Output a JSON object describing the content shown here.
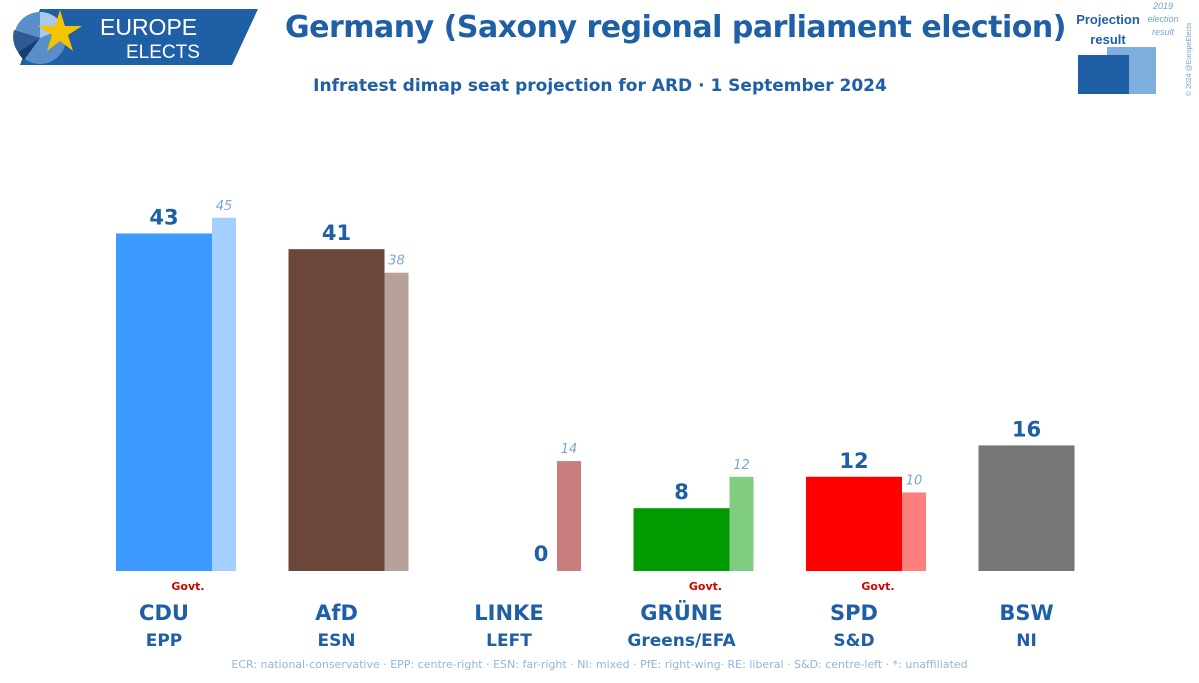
{
  "brand": {
    "line1": "EUROPE",
    "line2": "ELECTS"
  },
  "title": "Germany (Saxony regional parliament election)",
  "subtitle": "Infratest dimap seat projection for ARD · 1 September 2024",
  "legend": {
    "projection_line1": "Projection",
    "projection_line2": "result",
    "previous_line1": "2019",
    "previous_line2": "election",
    "previous_line3": "result",
    "copyright": "© 2024 @EuropeElects"
  },
  "footnote": "ECR: national-conservative · EPP: centre-right · ESN: far-right · NI: mixed · PfE: right-wing· RE: liberal · S&D: centre-left · *: unaffiliated",
  "colors": {
    "brand_blue": "#1f5fa6",
    "govt_red": "#d40000"
  },
  "chart_data": {
    "type": "bar",
    "series": [
      {
        "name": "Projection result",
        "values": [
          43,
          41,
          0,
          8,
          12,
          16
        ]
      },
      {
        "name": "2019 election result",
        "values": [
          45,
          38,
          14,
          12,
          10,
          null
        ]
      }
    ],
    "parties": [
      {
        "name": "CDU",
        "group": "EPP",
        "govt": "Govt.",
        "color": "#3d9bff",
        "prev_color": "#a3d0ff"
      },
      {
        "name": "AfD",
        "group": "ESN",
        "govt": "",
        "color": "#6b463b",
        "prev_color": "#b6a19b"
      },
      {
        "name": "LINKE",
        "group": "LEFT",
        "govt": "",
        "color": "#b03838",
        "prev_color": "#c97d7d"
      },
      {
        "name": "GRÜNE",
        "group": "Greens/EFA",
        "govt": "Govt.",
        "color": "#019a01",
        "prev_color": "#80cc80"
      },
      {
        "name": "SPD",
        "group": "S&D",
        "govt": "Govt.",
        "color": "#ff0000",
        "prev_color": "#ff7f7f"
      },
      {
        "name": "BSW",
        "group": "NI",
        "govt": "",
        "color": "#767676",
        "prev_color": "#bbbbbb"
      }
    ],
    "ylim": [
      0,
      50
    ]
  }
}
